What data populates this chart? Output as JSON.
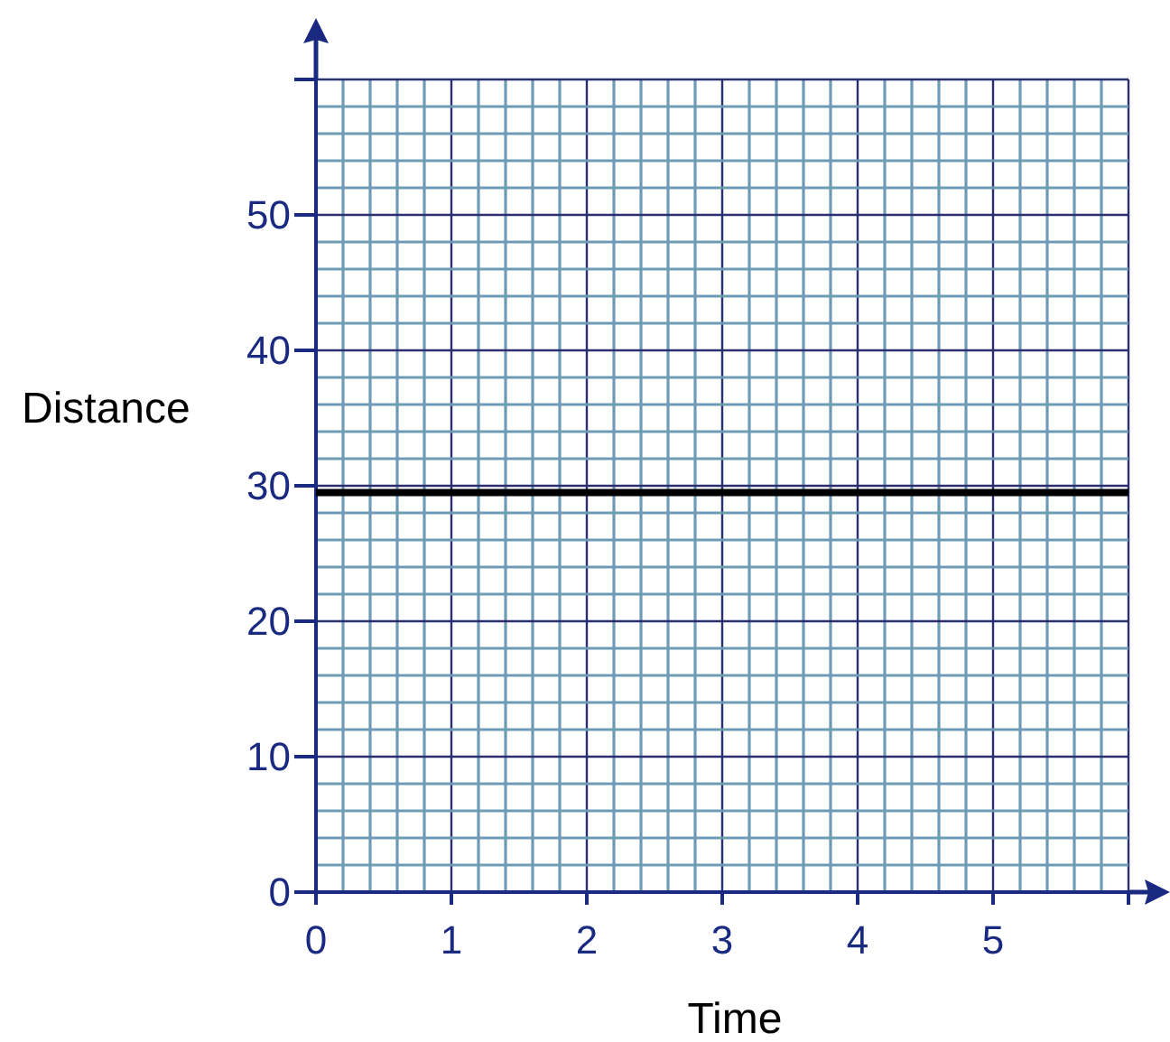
{
  "chart_data": {
    "type": "line",
    "xlabel": "Time",
    "ylabel": "Distance",
    "series": [
      {
        "color": "#000000",
        "x": [
          0,
          6
        ],
        "values": [
          29.5,
          29.5
        ]
      }
    ],
    "xlim": [
      0,
      6
    ],
    "ylim": [
      0,
      60
    ],
    "xticks": [
      0,
      {
        "value": 0.2,
        "label": null
      },
      {
        "value": 0.4,
        "label": null
      },
      {
        "value": 0.6,
        "label": null
      },
      {
        "value": 0.8,
        "label": null
      },
      1,
      {
        "value": 1.2,
        "label": null
      },
      {
        "value": 1.4,
        "label": null
      },
      {
        "value": 1.6,
        "label": null
      },
      {
        "value": 1.8,
        "label": null
      },
      2,
      {
        "value": 2.2,
        "label": null
      },
      {
        "value": 2.4,
        "label": null
      },
      {
        "value": 2.6,
        "label": null
      },
      {
        "value": 2.8,
        "label": null
      },
      3,
      {
        "value": 3.2,
        "label": null
      },
      {
        "value": 3.4,
        "label": null
      },
      {
        "value": 3.6,
        "label": null
      },
      {
        "value": 3.8,
        "label": null
      },
      4,
      {
        "value": 4.2,
        "label": null
      },
      {
        "value": 4.4,
        "label": null
      },
      {
        "value": 4.6,
        "label": null
      },
      {
        "value": 4.8,
        "label": null
      },
      5,
      {
        "value": 5.2,
        "label": null
      },
      {
        "value": 5.4,
        "label": null
      },
      {
        "value": 5.6,
        "label": null
      },
      {
        "value": 5.8,
        "label": null
      },
      {
        "value": 6,
        "label": null
      }
    ],
    "yticks": [
      0,
      {
        "value": 2,
        "label": null
      },
      {
        "value": 4,
        "label": null
      },
      {
        "value": 6,
        "label": null
      },
      {
        "value": 8,
        "label": null
      },
      10,
      {
        "value": 12,
        "label": null
      },
      {
        "value": 14,
        "label": null
      },
      {
        "value": 16,
        "label": null
      },
      {
        "value": 18,
        "label": null
      },
      20,
      {
        "value": 22,
        "label": null
      },
      {
        "value": 24,
        "label": null
      },
      {
        "value": 26,
        "label": null
      },
      {
        "value": 28,
        "label": null
      },
      30,
      {
        "value": 32,
        "label": null
      },
      {
        "value": 34,
        "label": null
      },
      {
        "value": 36,
        "label": null
      },
      {
        "value": 38,
        "label": null
      },
      40,
      {
        "value": 42,
        "label": null
      },
      {
        "value": 44,
        "label": null
      },
      {
        "value": 46,
        "label": null
      },
      {
        "value": 48,
        "label": null
      },
      50,
      {
        "value": 52,
        "label": null
      },
      {
        "value": 54,
        "label": null
      },
      {
        "value": 56,
        "label": null
      },
      {
        "value": 58,
        "label": null
      },
      {
        "value": 60,
        "label": null
      }
    ],
    "grid": true,
    "marker": "none",
    "line_style": "solid"
  }
}
